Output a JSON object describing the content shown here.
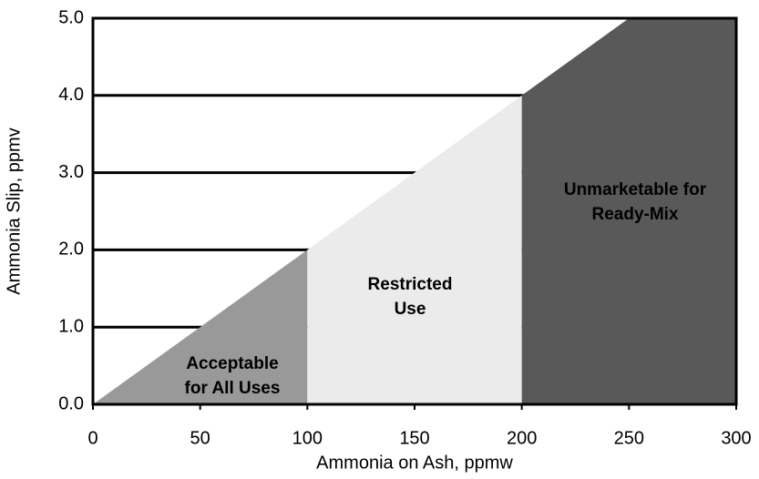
{
  "chart_data": {
    "type": "area",
    "x_label": "Ammonia on Ash, ppmw",
    "y_label": "Ammonia Slip, ppmv",
    "series": [
      {
        "label": [
          "Acceptable",
          "for All Uses"
        ],
        "color": "#999999",
        "x": [
          0,
          100
        ],
        "values": [
          0,
          2
        ]
      },
      {
        "label": [
          "Restricted",
          "Use"
        ],
        "color": "#ebebeb",
        "x": [
          100,
          200
        ],
        "values": [
          2,
          4
        ]
      },
      {
        "label": [
          "Unmarketable for",
          "Ready-Mix"
        ],
        "color": "#595959",
        "x": [
          200,
          250,
          300
        ],
        "values": [
          4,
          5,
          5
        ]
      }
    ],
    "xlim": [
      0,
      300
    ],
    "xticks": [
      0,
      50,
      100,
      150,
      200,
      250,
      300
    ],
    "ylim": [
      0,
      5
    ],
    "yticks": [
      {
        "value": 0,
        "label": "0.0"
      },
      {
        "value": 1,
        "label": "1.0"
      },
      {
        "value": 2,
        "label": "2.0"
      },
      {
        "value": 3,
        "label": "3.0"
      },
      {
        "value": 4,
        "label": "4.0"
      },
      {
        "value": 5,
        "label": "5.0"
      }
    ],
    "grid": true
  }
}
